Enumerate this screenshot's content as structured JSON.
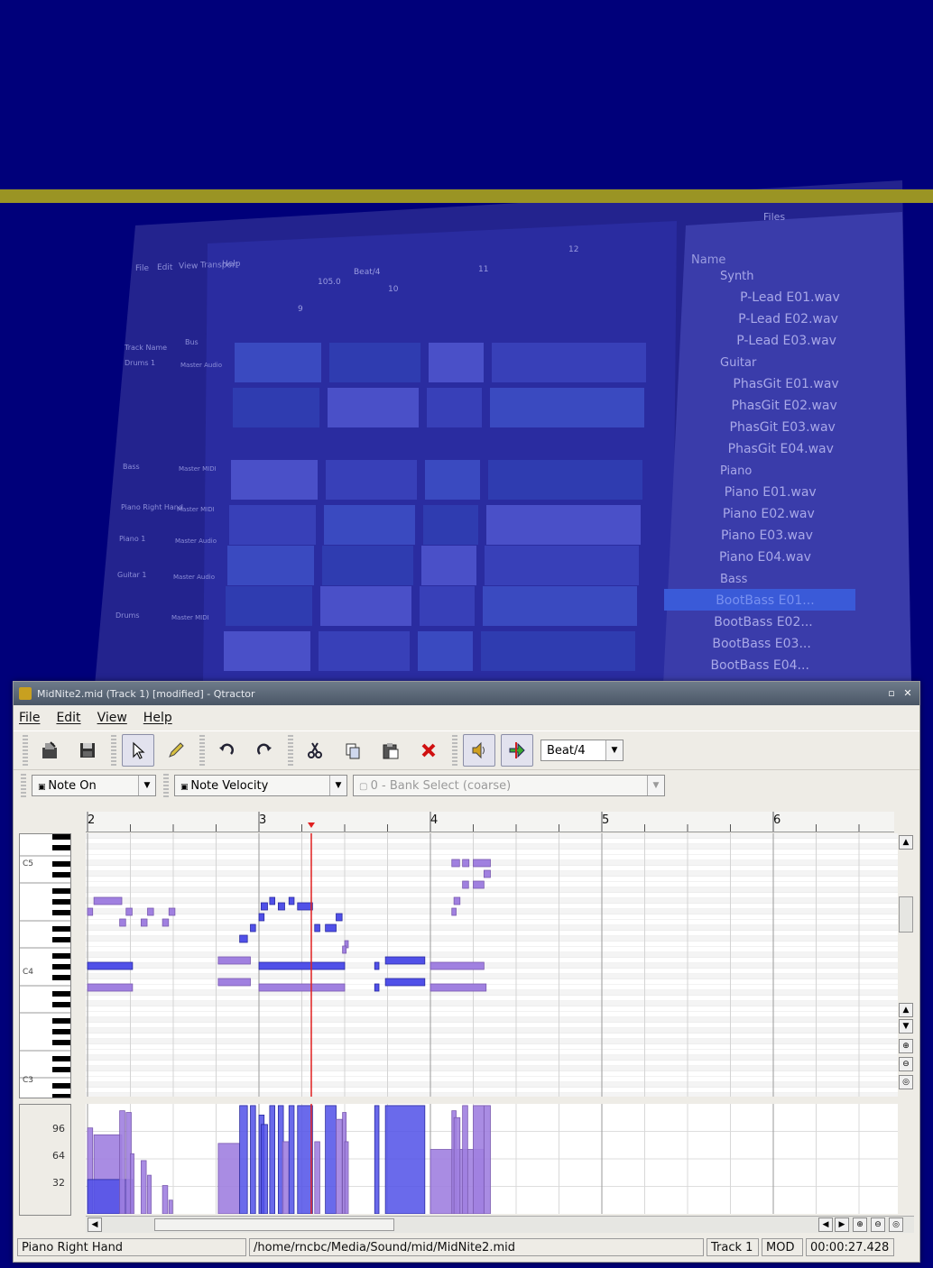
{
  "background": {
    "colors": {
      "page": "#00007a",
      "stripe": "#9a9424",
      "screen": "#2e2f9a"
    },
    "main_window": {
      "menu": [
        "File",
        "Edit",
        "View",
        "Transport",
        "Help"
      ],
      "tracks": [
        {
          "name": "Drums 1",
          "bus": "Master Audio"
        },
        {
          "name": "Bass",
          "bus": "Master MIDI"
        },
        {
          "name": "Piano Right Hand",
          "bus": "Master MIDI"
        },
        {
          "name": "Piano 1",
          "bus": "Master Audio"
        },
        {
          "name": "Guitar 1",
          "bus": "Master Audio"
        },
        {
          "name": "Drums",
          "bus": "Master MIDI"
        }
      ],
      "track_header": {
        "name_col": "Track Name",
        "bus_col": "Bus"
      },
      "bar_numbers": [
        "9",
        "10",
        "11",
        "12"
      ],
      "tempo": "105.0",
      "snap": "Beat/4"
    },
    "files_panel": {
      "title": "Files",
      "column": "Name",
      "groups": [
        {
          "name": "Synth",
          "files": [
            "P-Lead E01.wav",
            "P-Lead E02.wav",
            "P-Lead E03.wav"
          ]
        },
        {
          "name": "Guitar",
          "files": [
            "PhasGit E01.wav",
            "PhasGit E02.wav",
            "PhasGit E03.wav",
            "PhasGit E04.wav"
          ]
        },
        {
          "name": "Piano",
          "files": [
            "Piano E01.wav",
            "Piano E02.wav",
            "Piano E03.wav",
            "Piano E04.wav"
          ]
        },
        {
          "name": "Bass",
          "files": [
            "BootBass E01...",
            "BootBass E02...",
            "BootBass E03...",
            "BootBass E04..."
          ]
        }
      ],
      "selected": "BootBass E01..."
    }
  },
  "window": {
    "title": "MidNite2.mid (Track 1) [modified] - Qtractor",
    "controls": [
      "restore-icon",
      "close-icon"
    ]
  },
  "menu": [
    "File",
    "Edit",
    "View",
    "Help"
  ],
  "toolbar": {
    "icons": [
      "save-as-icon",
      "save-icon",
      "select-arrow-icon",
      "pencil-icon",
      "undo-icon",
      "redo-icon",
      "cut-icon",
      "copy-icon",
      "paste-icon",
      "delete-icon",
      "preview-speaker-icon",
      "follow-playhead-icon"
    ],
    "snap": "Beat/4"
  },
  "event_bar": {
    "view_type": "Note On",
    "event_type": "Note Velocity",
    "controller": "0 - Bank Select (coarse)"
  },
  "ruler": {
    "bars": [
      "2",
      "3",
      "4",
      "5",
      "6"
    ]
  },
  "keyboard": {
    "labels": [
      "C5",
      "C4",
      "C3"
    ]
  },
  "velocity_axis": {
    "labels": [
      "96",
      "64",
      "32"
    ]
  },
  "colors": {
    "note_fill": "#5050e8",
    "note_dim": "#a080e0",
    "playhead": "#e02020"
  },
  "notes": [
    {
      "beat": 0.15,
      "len": 0.65,
      "pitch": 68,
      "dim": true
    },
    {
      "beat": 0.0,
      "len": 0.12,
      "pitch": 66,
      "dim": true
    },
    {
      "beat": 0.9,
      "len": 0.14,
      "pitch": 66,
      "dim": true
    },
    {
      "beat": 1.4,
      "len": 0.14,
      "pitch": 66,
      "dim": true
    },
    {
      "beat": 1.9,
      "len": 0.14,
      "pitch": 66,
      "dim": true
    },
    {
      "beat": 0.75,
      "len": 0.14,
      "pitch": 64,
      "dim": true
    },
    {
      "beat": 1.25,
      "len": 0.14,
      "pitch": 64,
      "dim": true
    },
    {
      "beat": 1.75,
      "len": 0.14,
      "pitch": 64,
      "dim": true
    },
    {
      "beat": 0.0,
      "len": 1.05,
      "pitch": 56,
      "dim": false
    },
    {
      "beat": 0.0,
      "len": 1.05,
      "pitch": 52,
      "dim": true
    },
    {
      "beat": 3.05,
      "len": 0.75,
      "pitch": 57,
      "dim": true
    },
    {
      "beat": 3.05,
      "len": 0.75,
      "pitch": 53,
      "dim": true
    },
    {
      "beat": 3.55,
      "len": 0.18,
      "pitch": 61,
      "dim": false
    },
    {
      "beat": 3.8,
      "len": 0.12,
      "pitch": 63,
      "dim": false
    },
    {
      "beat": 4.0,
      "len": 0.12,
      "pitch": 65,
      "dim": false
    },
    {
      "beat": 4.05,
      "len": 0.15,
      "pitch": 67,
      "dim": false
    },
    {
      "beat": 4.25,
      "len": 0.12,
      "pitch": 68,
      "dim": false
    },
    {
      "beat": 4.45,
      "len": 0.15,
      "pitch": 67,
      "dim": false
    },
    {
      "beat": 4.7,
      "len": 0.12,
      "pitch": 68,
      "dim": false
    },
    {
      "beat": 4.9,
      "len": 0.35,
      "pitch": 67,
      "dim": false
    },
    {
      "beat": 5.3,
      "len": 0.12,
      "pitch": 63,
      "dim": false
    },
    {
      "beat": 5.55,
      "len": 0.25,
      "pitch": 63,
      "dim": false
    },
    {
      "beat": 5.8,
      "len": 0.14,
      "pitch": 65,
      "dim": false
    },
    {
      "beat": 6.0,
      "len": 0.08,
      "pitch": 60,
      "dim": true
    },
    {
      "beat": 5.95,
      "len": 0.08,
      "pitch": 59,
      "dim": true
    },
    {
      "beat": 4.0,
      "len": 2.0,
      "pitch": 56,
      "dim": false
    },
    {
      "beat": 4.0,
      "len": 2.0,
      "pitch": 52,
      "dim": true
    },
    {
      "beat": 6.7,
      "len": 0.1,
      "pitch": 56,
      "dim": false
    },
    {
      "beat": 6.7,
      "len": 0.1,
      "pitch": 52,
      "dim": false
    },
    {
      "beat": 6.95,
      "len": 0.92,
      "pitch": 57,
      "dim": false
    },
    {
      "beat": 6.95,
      "len": 0.92,
      "pitch": 53,
      "dim": false
    },
    {
      "beat": 8.0,
      "len": 1.25,
      "pitch": 56,
      "dim": true
    },
    {
      "beat": 8.0,
      "len": 1.3,
      "pitch": 52,
      "dim": true
    },
    {
      "beat": 8.5,
      "len": 0.18,
      "pitch": 75,
      "dim": true
    },
    {
      "beat": 8.75,
      "len": 0.15,
      "pitch": 75,
      "dim": true
    },
    {
      "beat": 9.0,
      "len": 0.4,
      "pitch": 75,
      "dim": true
    },
    {
      "beat": 9.25,
      "len": 0.15,
      "pitch": 73,
      "dim": true
    },
    {
      "beat": 8.75,
      "len": 0.14,
      "pitch": 71,
      "dim": true
    },
    {
      "beat": 9.0,
      "len": 0.25,
      "pitch": 71,
      "dim": true
    },
    {
      "beat": 8.55,
      "len": 0.14,
      "pitch": 68,
      "dim": true
    },
    {
      "beat": 8.5,
      "len": 0.1,
      "pitch": 66,
      "dim": true
    }
  ],
  "velocities": [
    {
      "beat": 0.0,
      "len": 0.12,
      "value": 100,
      "dim": true
    },
    {
      "beat": 0.15,
      "len": 0.65,
      "value": 92,
      "dim": true
    },
    {
      "beat": 0.0,
      "len": 1.05,
      "value": 40,
      "dim": false
    },
    {
      "beat": 0.75,
      "len": 0.12,
      "value": 120,
      "dim": true
    },
    {
      "beat": 0.9,
      "len": 0.12,
      "value": 118,
      "dim": true
    },
    {
      "beat": 1.0,
      "len": 0.08,
      "value": 70,
      "dim": true
    },
    {
      "beat": 1.25,
      "len": 0.12,
      "value": 62,
      "dim": true
    },
    {
      "beat": 1.4,
      "len": 0.08,
      "value": 45,
      "dim": true
    },
    {
      "beat": 1.75,
      "len": 0.12,
      "value": 33,
      "dim": true
    },
    {
      "beat": 1.9,
      "len": 0.08,
      "value": 16,
      "dim": true
    },
    {
      "beat": 3.05,
      "len": 0.5,
      "value": 82,
      "dim": true
    },
    {
      "beat": 3.55,
      "len": 0.18,
      "value": 126,
      "dim": false
    },
    {
      "beat": 3.8,
      "len": 0.12,
      "value": 126,
      "dim": false
    },
    {
      "beat": 4.0,
      "len": 0.12,
      "value": 115,
      "dim": false
    },
    {
      "beat": 4.05,
      "len": 0.15,
      "value": 104,
      "dim": false
    },
    {
      "beat": 4.25,
      "len": 0.12,
      "value": 126,
      "dim": false
    },
    {
      "beat": 4.45,
      "len": 0.12,
      "value": 126,
      "dim": false
    },
    {
      "beat": 4.55,
      "len": 0.15,
      "value": 84,
      "dim": true
    },
    {
      "beat": 4.7,
      "len": 0.12,
      "value": 126,
      "dim": false
    },
    {
      "beat": 4.9,
      "len": 0.35,
      "value": 126,
      "dim": false
    },
    {
      "beat": 5.3,
      "len": 0.12,
      "value": 84,
      "dim": true
    },
    {
      "beat": 5.55,
      "len": 0.25,
      "value": 126,
      "dim": false
    },
    {
      "beat": 5.8,
      "len": 0.14,
      "value": 110,
      "dim": true
    },
    {
      "beat": 5.95,
      "len": 0.08,
      "value": 118,
      "dim": true
    },
    {
      "beat": 6.0,
      "len": 0.08,
      "value": 84,
      "dim": true
    },
    {
      "beat": 6.7,
      "len": 0.1,
      "value": 126,
      "dim": false
    },
    {
      "beat": 6.95,
      "len": 0.92,
      "value": 126,
      "dim": false
    },
    {
      "beat": 8.0,
      "len": 1.25,
      "value": 75,
      "dim": true
    },
    {
      "beat": 8.5,
      "len": 0.1,
      "value": 120,
      "dim": true
    },
    {
      "beat": 8.55,
      "len": 0.14,
      "value": 112,
      "dim": true
    },
    {
      "beat": 8.75,
      "len": 0.12,
      "value": 126,
      "dim": true
    },
    {
      "beat": 9.0,
      "len": 0.25,
      "value": 126,
      "dim": true
    },
    {
      "beat": 9.25,
      "len": 0.15,
      "value": 126,
      "dim": true
    }
  ],
  "statusbar": {
    "track_name": "Piano Right Hand",
    "file_path": "/home/rncbc/Media/Sound/mid/MidNite2.mid",
    "track": "Track 1",
    "mod": "MOD",
    "time": "00:00:27.428"
  }
}
